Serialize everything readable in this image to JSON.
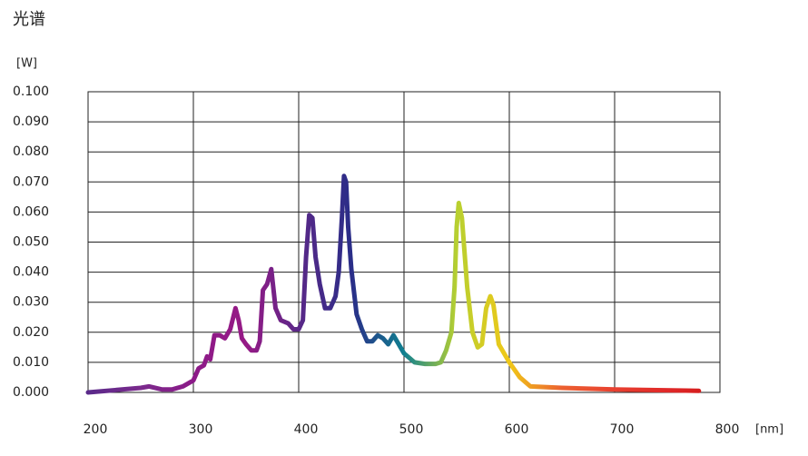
{
  "chart_data": {
    "type": "line",
    "title": "光谱",
    "y_label": "[W]",
    "x_label": "[nm]",
    "x": [
      200,
      250,
      258,
      270,
      280,
      290,
      300,
      305,
      310,
      313,
      316,
      320,
      325,
      330,
      335,
      340,
      343,
      346,
      350,
      355,
      360,
      363,
      366,
      370,
      374,
      378,
      383,
      390,
      395,
      400,
      404,
      407,
      410,
      413,
      416,
      420,
      425,
      430,
      435,
      438,
      441,
      443,
      445,
      447,
      450,
      455,
      460,
      465,
      470,
      475,
      480,
      485,
      490,
      495,
      500,
      510,
      520,
      530,
      535,
      540,
      545,
      548,
      550,
      552,
      555,
      560,
      565,
      570,
      574,
      578,
      582,
      585,
      590,
      600,
      610,
      620,
      650,
      700,
      780
    ],
    "series": [
      {
        "values": [
          0.0,
          0.0015,
          0.002,
          0.001,
          0.001,
          0.002,
          0.004,
          0.008,
          0.009,
          0.012,
          0.011,
          0.019,
          0.019,
          0.018,
          0.021,
          0.028,
          0.024,
          0.018,
          0.016,
          0.014,
          0.014,
          0.017,
          0.034,
          0.036,
          0.041,
          0.028,
          0.024,
          0.023,
          0.021,
          0.021,
          0.024,
          0.045,
          0.059,
          0.058,
          0.045,
          0.036,
          0.028,
          0.028,
          0.032,
          0.04,
          0.058,
          0.072,
          0.07,
          0.055,
          0.041,
          0.026,
          0.021,
          0.017,
          0.017,
          0.019,
          0.018,
          0.016,
          0.019,
          0.016,
          0.013,
          0.01,
          0.0095,
          0.0095,
          0.01,
          0.014,
          0.02,
          0.035,
          0.055,
          0.063,
          0.058,
          0.035,
          0.02,
          0.015,
          0.016,
          0.028,
          0.032,
          0.029,
          0.016,
          0.01,
          0.005,
          0.002,
          0.0015,
          0.001,
          0.0005
        ],
        "colors": [
          "#5a2a8a",
          "#7a2a8c",
          "#8c1a88",
          "#961a86",
          "#5a2888",
          "#2a2d88",
          "#108090",
          "#b8d030",
          "#f0c818",
          "#ec6030",
          "#e84030",
          "#e02828",
          "#d01818"
        ]
      }
    ],
    "xlim": [
      200,
      800
    ],
    "xticks": [
      200,
      300,
      400,
      500,
      600,
      700,
      800
    ],
    "ylim": [
      0,
      0.1
    ],
    "yticks": [
      {
        "value": 0,
        "label": "0.000"
      },
      {
        "value": 0.01,
        "label": "0.010"
      },
      {
        "value": 0.02,
        "label": "0.020"
      },
      {
        "value": 0.03,
        "label": "0.030"
      },
      {
        "value": 0.04,
        "label": "0.040"
      },
      {
        "value": 0.05,
        "label": "0.050"
      },
      {
        "value": 0.06,
        "label": "0.060"
      },
      {
        "value": 0.07,
        "label": "0.070"
      },
      {
        "value": 0.08,
        "label": "0.080"
      },
      {
        "value": 0.09,
        "label": "0.090"
      },
      {
        "value": 0.1,
        "label": "0.100"
      }
    ],
    "grid": true
  }
}
